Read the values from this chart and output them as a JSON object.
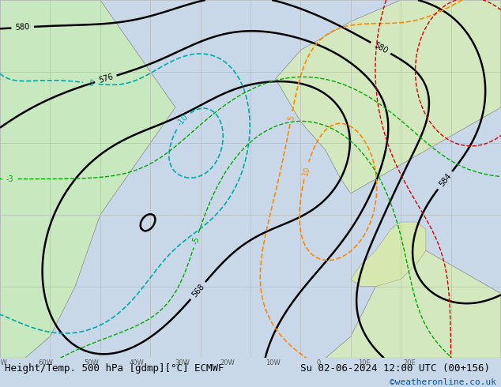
{
  "title_left": "Height/Temp. 500 hPa [gdmp][°C] ECMWF",
  "title_right": "Su 02-06-2024 12:00 UTC (00+156)",
  "copyright": "©weatheronline.co.uk",
  "bg_color_land": "#d8e8c8",
  "bg_color_sea": "#c8d8e8",
  "bg_color_map": "#e0e0e0",
  "grid_color": "#bbbbbb",
  "font_size_title": 9,
  "font_size_labels": 7,
  "bottom_bar_color": "#e0e0e0",
  "bottom_text_color": "#000000",
  "copyright_color": "#0055aa"
}
